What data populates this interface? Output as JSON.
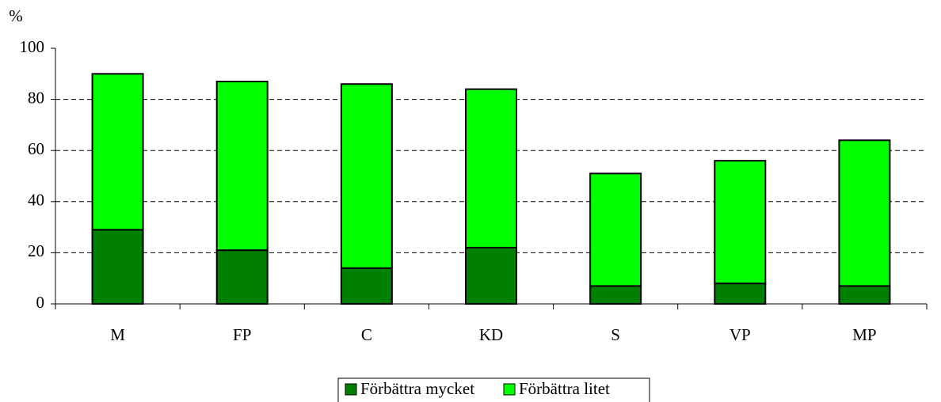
{
  "chart_data": {
    "type": "stacked_bar",
    "y_label": "%",
    "categories": [
      "M",
      "FP",
      "C",
      "KD",
      "S",
      "VP",
      "MP"
    ],
    "series": [
      {
        "name": "Förbättra mycket",
        "color": "#008000",
        "values": [
          29,
          21,
          14,
          22,
          7,
          8,
          7
        ]
      },
      {
        "name": "Förbättra litet",
        "color": "#00ff00",
        "values": [
          61,
          66,
          72,
          62,
          44,
          48,
          57
        ]
      }
    ],
    "ylim": [
      0,
      100
    ],
    "yticks": [
      0,
      20,
      40,
      60,
      80,
      100
    ],
    "grid": true,
    "legend": "bottom"
  }
}
